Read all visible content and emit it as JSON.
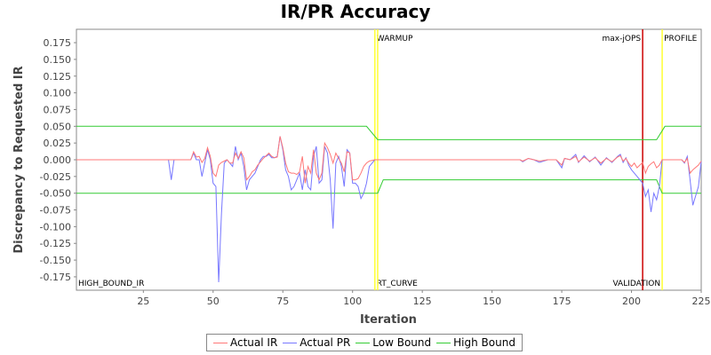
{
  "chart_data": {
    "type": "line",
    "title": "IR/PR Accuracy",
    "xlabel": "Iteration",
    "ylabel": "Discrepancy to Requested IR",
    "xlim": [
      1,
      225
    ],
    "ylim": [
      -0.195,
      0.195
    ],
    "x_ticks": [
      25,
      50,
      75,
      100,
      125,
      150,
      175,
      200,
      225
    ],
    "y_ticks": [
      0.175,
      0.15,
      0.125,
      0.1,
      0.075,
      0.05,
      0.025,
      0.0,
      -0.025,
      -0.05,
      -0.075,
      -0.1,
      -0.125,
      -0.15,
      -0.175
    ],
    "y_tick_labels": [
      "0.175",
      "0.150",
      "0.125",
      "0.100",
      "0.075",
      "0.050",
      "0.025",
      "0.000",
      "-0.025",
      "-0.050",
      "-0.075",
      "-0.100",
      "-0.125",
      "-0.150",
      "-0.175"
    ],
    "grid": false,
    "legend_position": "bottom",
    "markers": [
      {
        "x": 108,
        "color": "#ffff33",
        "top_label": "WARMUP",
        "bottom_label": "RT_CURVE"
      },
      {
        "x": 109,
        "color": "#ffff33",
        "top_label": "",
        "bottom_label": ""
      },
      {
        "x": 204,
        "color": "#cc0000",
        "top_label": "max-jOPS",
        "bottom_label": ""
      },
      {
        "x": 211,
        "color": "#ffff33",
        "top_label": "PROFILE",
        "bottom_label": "VALIDATION"
      }
    ],
    "corner_label": "HIGH_BOUND_IR",
    "series": [
      {
        "name": "Actual IR",
        "color": "#ff7777",
        "points": [
          [
            1,
            0
          ],
          [
            34,
            0
          ],
          [
            42,
            0
          ],
          [
            43,
            0.012
          ],
          [
            44,
            0.004
          ],
          [
            45,
            0.005
          ],
          [
            46,
            -0.004
          ],
          [
            47,
            0.002
          ],
          [
            48,
            0.018
          ],
          [
            49,
            0.005
          ],
          [
            50,
            -0.02
          ],
          [
            51,
            -0.025
          ],
          [
            52,
            -0.008
          ],
          [
            53,
            -0.004
          ],
          [
            54,
            -0.002
          ],
          [
            55,
            0
          ],
          [
            56,
            -0.005
          ],
          [
            57,
            -0.005
          ],
          [
            58,
            0.01
          ],
          [
            59,
            0.002
          ],
          [
            60,
            0.012
          ],
          [
            61,
            0.003
          ],
          [
            62,
            -0.03
          ],
          [
            63,
            -0.025
          ],
          [
            64,
            -0.018
          ],
          [
            65,
            -0.015
          ],
          [
            66,
            -0.008
          ],
          [
            67,
            -0.003
          ],
          [
            68,
            0.002
          ],
          [
            69,
            0.006
          ],
          [
            70,
            0.01
          ],
          [
            71,
            0.005
          ],
          [
            72,
            0.003
          ],
          [
            73,
            0.004
          ],
          [
            74,
            0.035
          ],
          [
            75,
            0.018
          ],
          [
            76,
            -0.005
          ],
          [
            77,
            -0.018
          ],
          [
            78,
            -0.02
          ],
          [
            79,
            -0.02
          ],
          [
            80,
            -0.022
          ],
          [
            81,
            -0.018
          ],
          [
            82,
            0.005
          ],
          [
            83,
            -0.035
          ],
          [
            84,
            -0.01
          ],
          [
            85,
            -0.02
          ],
          [
            86,
            0.015
          ],
          [
            87,
            -0.02
          ],
          [
            88,
            -0.03
          ],
          [
            89,
            -0.02
          ],
          [
            90,
            0.025
          ],
          [
            91,
            0.018
          ],
          [
            92,
            0.008
          ],
          [
            93,
            -0.005
          ],
          [
            94,
            0.01
          ],
          [
            95,
            0.002
          ],
          [
            96,
            -0.005
          ],
          [
            97,
            -0.018
          ],
          [
            98,
            0.012
          ],
          [
            99,
            0.01
          ],
          [
            100,
            -0.03
          ],
          [
            101,
            -0.03
          ],
          [
            102,
            -0.028
          ],
          [
            103,
            -0.02
          ],
          [
            104,
            -0.01
          ],
          [
            105,
            -0.005
          ],
          [
            106,
            -0.002
          ],
          [
            108,
            0
          ],
          [
            160,
            0
          ],
          [
            161,
            -0.002
          ],
          [
            163,
            0.002
          ],
          [
            165,
            0
          ],
          [
            167,
            -0.002
          ],
          [
            170,
            0
          ],
          [
            173,
            0
          ],
          [
            175,
            -0.008
          ],
          [
            176,
            0.002
          ],
          [
            178,
            0
          ],
          [
            180,
            0.005
          ],
          [
            181,
            -0.003
          ],
          [
            183,
            0.004
          ],
          [
            185,
            -0.002
          ],
          [
            187,
            0.003
          ],
          [
            189,
            -0.005
          ],
          [
            191,
            0.002
          ],
          [
            193,
            -0.003
          ],
          [
            195,
            0.004
          ],
          [
            196,
            0.006
          ],
          [
            197,
            -0.002
          ],
          [
            198,
            0.002
          ],
          [
            199,
            -0.005
          ],
          [
            200,
            -0.01
          ],
          [
            201,
            -0.005
          ],
          [
            202,
            -0.012
          ],
          [
            203,
            -0.008
          ],
          [
            204,
            -0.004
          ],
          [
            205,
            -0.02
          ],
          [
            206,
            -0.01
          ],
          [
            207,
            -0.006
          ],
          [
            208,
            -0.003
          ],
          [
            209,
            -0.012
          ],
          [
            210,
            -0.008
          ],
          [
            211,
            0
          ],
          [
            218,
            0
          ],
          [
            219,
            -0.004
          ],
          [
            220,
            0.002
          ],
          [
            221,
            -0.02
          ],
          [
            222,
            -0.015
          ],
          [
            224,
            -0.008
          ],
          [
            225,
            -0.002
          ]
        ]
      },
      {
        "name": "Actual PR",
        "color": "#7777ff",
        "points": [
          [
            1,
            0
          ],
          [
            34,
            0
          ],
          [
            35,
            -0.03
          ],
          [
            36,
            0
          ],
          [
            42,
            0
          ],
          [
            43,
            0.01
          ],
          [
            44,
            0
          ],
          [
            45,
            0
          ],
          [
            46,
            -0.025
          ],
          [
            47,
            -0.005
          ],
          [
            48,
            0.015
          ],
          [
            49,
            0
          ],
          [
            50,
            -0.035
          ],
          [
            51,
            -0.04
          ],
          [
            52,
            -0.183
          ],
          [
            53,
            -0.08
          ],
          [
            54,
            -0.005
          ],
          [
            55,
            0
          ],
          [
            56,
            -0.005
          ],
          [
            57,
            -0.01
          ],
          [
            58,
            0.02
          ],
          [
            59,
            0
          ],
          [
            60,
            0.01
          ],
          [
            61,
            -0.01
          ],
          [
            62,
            -0.045
          ],
          [
            63,
            -0.03
          ],
          [
            64,
            -0.025
          ],
          [
            65,
            -0.02
          ],
          [
            66,
            -0.01
          ],
          [
            67,
            0
          ],
          [
            68,
            0.005
          ],
          [
            69,
            0.005
          ],
          [
            70,
            0.008
          ],
          [
            71,
            0.003
          ],
          [
            72,
            0.003
          ],
          [
            73,
            0.005
          ],
          [
            74,
            0.035
          ],
          [
            75,
            0.015
          ],
          [
            76,
            -0.015
          ],
          [
            77,
            -0.025
          ],
          [
            78,
            -0.045
          ],
          [
            79,
            -0.04
          ],
          [
            80,
            -0.03
          ],
          [
            81,
            -0.02
          ],
          [
            82,
            -0.045
          ],
          [
            83,
            -0.015
          ],
          [
            84,
            -0.04
          ],
          [
            85,
            -0.045
          ],
          [
            86,
            0.005
          ],
          [
            87,
            0.02
          ],
          [
            88,
            -0.035
          ],
          [
            89,
            -0.03
          ],
          [
            90,
            0.02
          ],
          [
            91,
            0.01
          ],
          [
            92,
            -0.03
          ],
          [
            93,
            -0.103
          ],
          [
            94,
            -0.005
          ],
          [
            95,
            0.005
          ],
          [
            96,
            -0.01
          ],
          [
            97,
            -0.04
          ],
          [
            98,
            0.015
          ],
          [
            99,
            0.01
          ],
          [
            100,
            -0.035
          ],
          [
            101,
            -0.035
          ],
          [
            102,
            -0.04
          ],
          [
            103,
            -0.058
          ],
          [
            104,
            -0.05
          ],
          [
            105,
            -0.035
          ],
          [
            106,
            -0.01
          ],
          [
            108,
            0
          ],
          [
            160,
            0
          ],
          [
            161,
            -0.003
          ],
          [
            163,
            0.002
          ],
          [
            165,
            0
          ],
          [
            167,
            -0.004
          ],
          [
            170,
            0
          ],
          [
            173,
            0
          ],
          [
            175,
            -0.012
          ],
          [
            176,
            0.002
          ],
          [
            178,
            0
          ],
          [
            180,
            0.008
          ],
          [
            181,
            -0.004
          ],
          [
            183,
            0.006
          ],
          [
            185,
            -0.003
          ],
          [
            187,
            0.004
          ],
          [
            189,
            -0.008
          ],
          [
            191,
            0.003
          ],
          [
            193,
            -0.004
          ],
          [
            195,
            0.005
          ],
          [
            196,
            0.008
          ],
          [
            197,
            -0.004
          ],
          [
            198,
            0.003
          ],
          [
            199,
            -0.008
          ],
          [
            200,
            -0.015
          ],
          [
            201,
            -0.02
          ],
          [
            202,
            -0.025
          ],
          [
            203,
            -0.03
          ],
          [
            204,
            -0.035
          ],
          [
            205,
            -0.055
          ],
          [
            206,
            -0.045
          ],
          [
            207,
            -0.078
          ],
          [
            208,
            -0.05
          ],
          [
            209,
            -0.06
          ],
          [
            210,
            -0.04
          ],
          [
            211,
            0
          ],
          [
            218,
            0
          ],
          [
            219,
            -0.005
          ],
          [
            220,
            0.005
          ],
          [
            221,
            -0.03
          ],
          [
            222,
            -0.068
          ],
          [
            224,
            -0.04
          ],
          [
            225,
            -0.002
          ]
        ]
      },
      {
        "name": "Low Bound",
        "color": "#33cc33",
        "points": [
          [
            1,
            -0.05
          ],
          [
            108,
            -0.05
          ],
          [
            109,
            -0.05
          ],
          [
            111,
            -0.03
          ],
          [
            209,
            -0.03
          ],
          [
            211,
            -0.05
          ],
          [
            225,
            -0.05
          ]
        ]
      },
      {
        "name": "High Bound",
        "color": "#33cc33",
        "points": [
          [
            1,
            0.05
          ],
          [
            105,
            0.05
          ],
          [
            109,
            0.03
          ],
          [
            209,
            0.03
          ],
          [
            212,
            0.05
          ],
          [
            225,
            0.05
          ]
        ]
      }
    ]
  }
}
